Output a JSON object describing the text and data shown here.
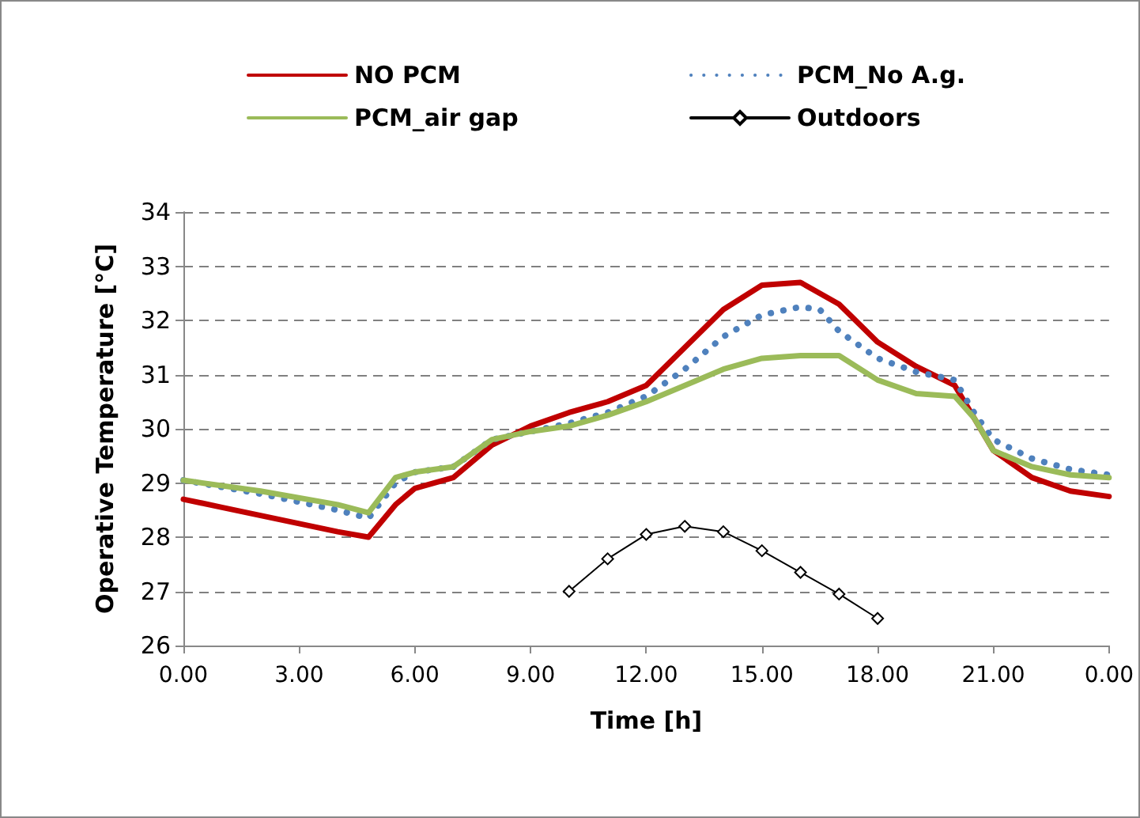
{
  "chart_data": {
    "type": "line",
    "xlabel": "Time [h]",
    "ylabel": "Operative Temperature [°C]",
    "xlim": [
      "--01-01T00:00",
      "--01-02T00:00"
    ],
    "xticks": [
      {
        "value": "--01-01T00:00",
        "label": "0.00"
      },
      {
        "value": "--01-01T03:00",
        "label": "3.00"
      },
      {
        "value": "--01-01T06:00",
        "label": "6.00"
      },
      {
        "value": "--01-01T09:00",
        "label": "9.00"
      },
      {
        "value": "--01-01T12:00",
        "label": "12.00"
      },
      {
        "value": "--01-01T15:00",
        "label": "15.00"
      },
      {
        "value": "--01-01T18:00",
        "label": "18.00"
      },
      {
        "value": "--01-01T21:00",
        "label": "21.00"
      },
      {
        "value": "--01-02T00:00",
        "label": "0.00"
      }
    ],
    "ylim": [
      26,
      34
    ],
    "yticks": [
      26,
      27,
      28,
      29,
      30,
      31,
      32,
      33,
      34
    ],
    "grid": "y",
    "legend": "top",
    "series": [
      {
        "name": "NO PCM",
        "color": "#c00000",
        "line_style": "solid",
        "marker": "none",
        "x": [
          "--01-01T00:00",
          "--01-01T01:00",
          "--01-01T02:00",
          "--01-01T03:00",
          "--01-01T04:00",
          "--01-01T04:48",
          "--01-01T05:30",
          "--01-01T06:00",
          "--01-01T07:00",
          "--01-01T08:00",
          "--01-01T09:00",
          "--01-01T10:00",
          "--01-01T11:00",
          "--01-01T12:00",
          "--01-01T13:00",
          "--01-01T14:00",
          "--01-01T15:00",
          "--01-01T16:00",
          "--01-01T17:00",
          "--01-01T18:00",
          "--01-01T19:00",
          "--01-01T20:00",
          "--01-01T20:30",
          "--01-01T21:00",
          "--01-01T22:00",
          "--01-01T23:00",
          "--01-02T00:00"
        ],
        "values": [
          28.7,
          28.55,
          28.4,
          28.25,
          28.1,
          28.0,
          28.6,
          28.9,
          29.1,
          29.7,
          30.05,
          30.3,
          30.5,
          30.8,
          31.5,
          32.2,
          32.65,
          32.7,
          32.3,
          31.6,
          31.15,
          30.8,
          30.2,
          29.6,
          29.1,
          28.85,
          28.75
        ]
      },
      {
        "name": "PCM_No A.g.",
        "color": "#4f81bd",
        "line_style": "dotted",
        "marker": "none",
        "x": [
          "--01-01T00:00",
          "--01-01T02:00",
          "--01-01T04:00",
          "--01-01T04:48",
          "--01-01T05:30",
          "--01-01T06:00",
          "--01-01T07:00",
          "--01-01T08:00",
          "--01-01T09:00",
          "--01-01T10:00",
          "--01-01T11:00",
          "--01-01T12:00",
          "--01-01T13:00",
          "--01-01T14:00",
          "--01-01T15:00",
          "--01-01T16:00",
          "--01-01T16:30",
          "--01-01T17:00",
          "--01-01T18:00",
          "--01-01T19:00",
          "--01-01T20:00",
          "--01-01T20:30",
          "--01-01T21:00",
          "--01-01T22:00",
          "--01-01T23:00",
          "--01-02T00:00"
        ],
        "values": [
          29.05,
          28.8,
          28.5,
          28.35,
          29.0,
          29.2,
          29.3,
          29.8,
          29.95,
          30.1,
          30.3,
          30.6,
          31.1,
          31.7,
          32.1,
          32.25,
          32.2,
          31.8,
          31.3,
          31.05,
          30.9,
          30.3,
          29.8,
          29.45,
          29.25,
          29.15
        ]
      },
      {
        "name": "PCM_air gap",
        "color": "#9bbb59",
        "line_style": "solid",
        "marker": "none",
        "x": [
          "--01-01T00:00",
          "--01-01T02:00",
          "--01-01T04:00",
          "--01-01T04:48",
          "--01-01T05:30",
          "--01-01T06:00",
          "--01-01T07:00",
          "--01-01T08:00",
          "--01-01T09:00",
          "--01-01T10:00",
          "--01-01T11:00",
          "--01-01T12:00",
          "--01-01T13:00",
          "--01-01T14:00",
          "--01-01T15:00",
          "--01-01T16:00",
          "--01-01T17:00",
          "--01-01T18:00",
          "--01-01T19:00",
          "--01-01T20:00",
          "--01-01T20:30",
          "--01-01T21:00",
          "--01-01T22:00",
          "--01-01T23:00",
          "--01-02T00:00"
        ],
        "values": [
          29.05,
          28.85,
          28.6,
          28.45,
          29.1,
          29.2,
          29.3,
          29.8,
          29.95,
          30.05,
          30.25,
          30.5,
          30.8,
          31.1,
          31.3,
          31.35,
          31.35,
          30.9,
          30.65,
          30.6,
          30.2,
          29.6,
          29.3,
          29.15,
          29.1
        ]
      },
      {
        "name": "Outdoors",
        "color": "#000000",
        "line_style": "solid",
        "marker": "diamond",
        "x": [
          "--01-01T10:00",
          "--01-01T11:00",
          "--01-01T12:00",
          "--01-01T13:00",
          "--01-01T14:00",
          "--01-01T15:00",
          "--01-01T16:00",
          "--01-01T17:00",
          "--01-01T18:00"
        ],
        "values": [
          27.0,
          27.6,
          28.05,
          28.2,
          28.1,
          27.75,
          27.35,
          26.95,
          26.5
        ]
      }
    ]
  }
}
